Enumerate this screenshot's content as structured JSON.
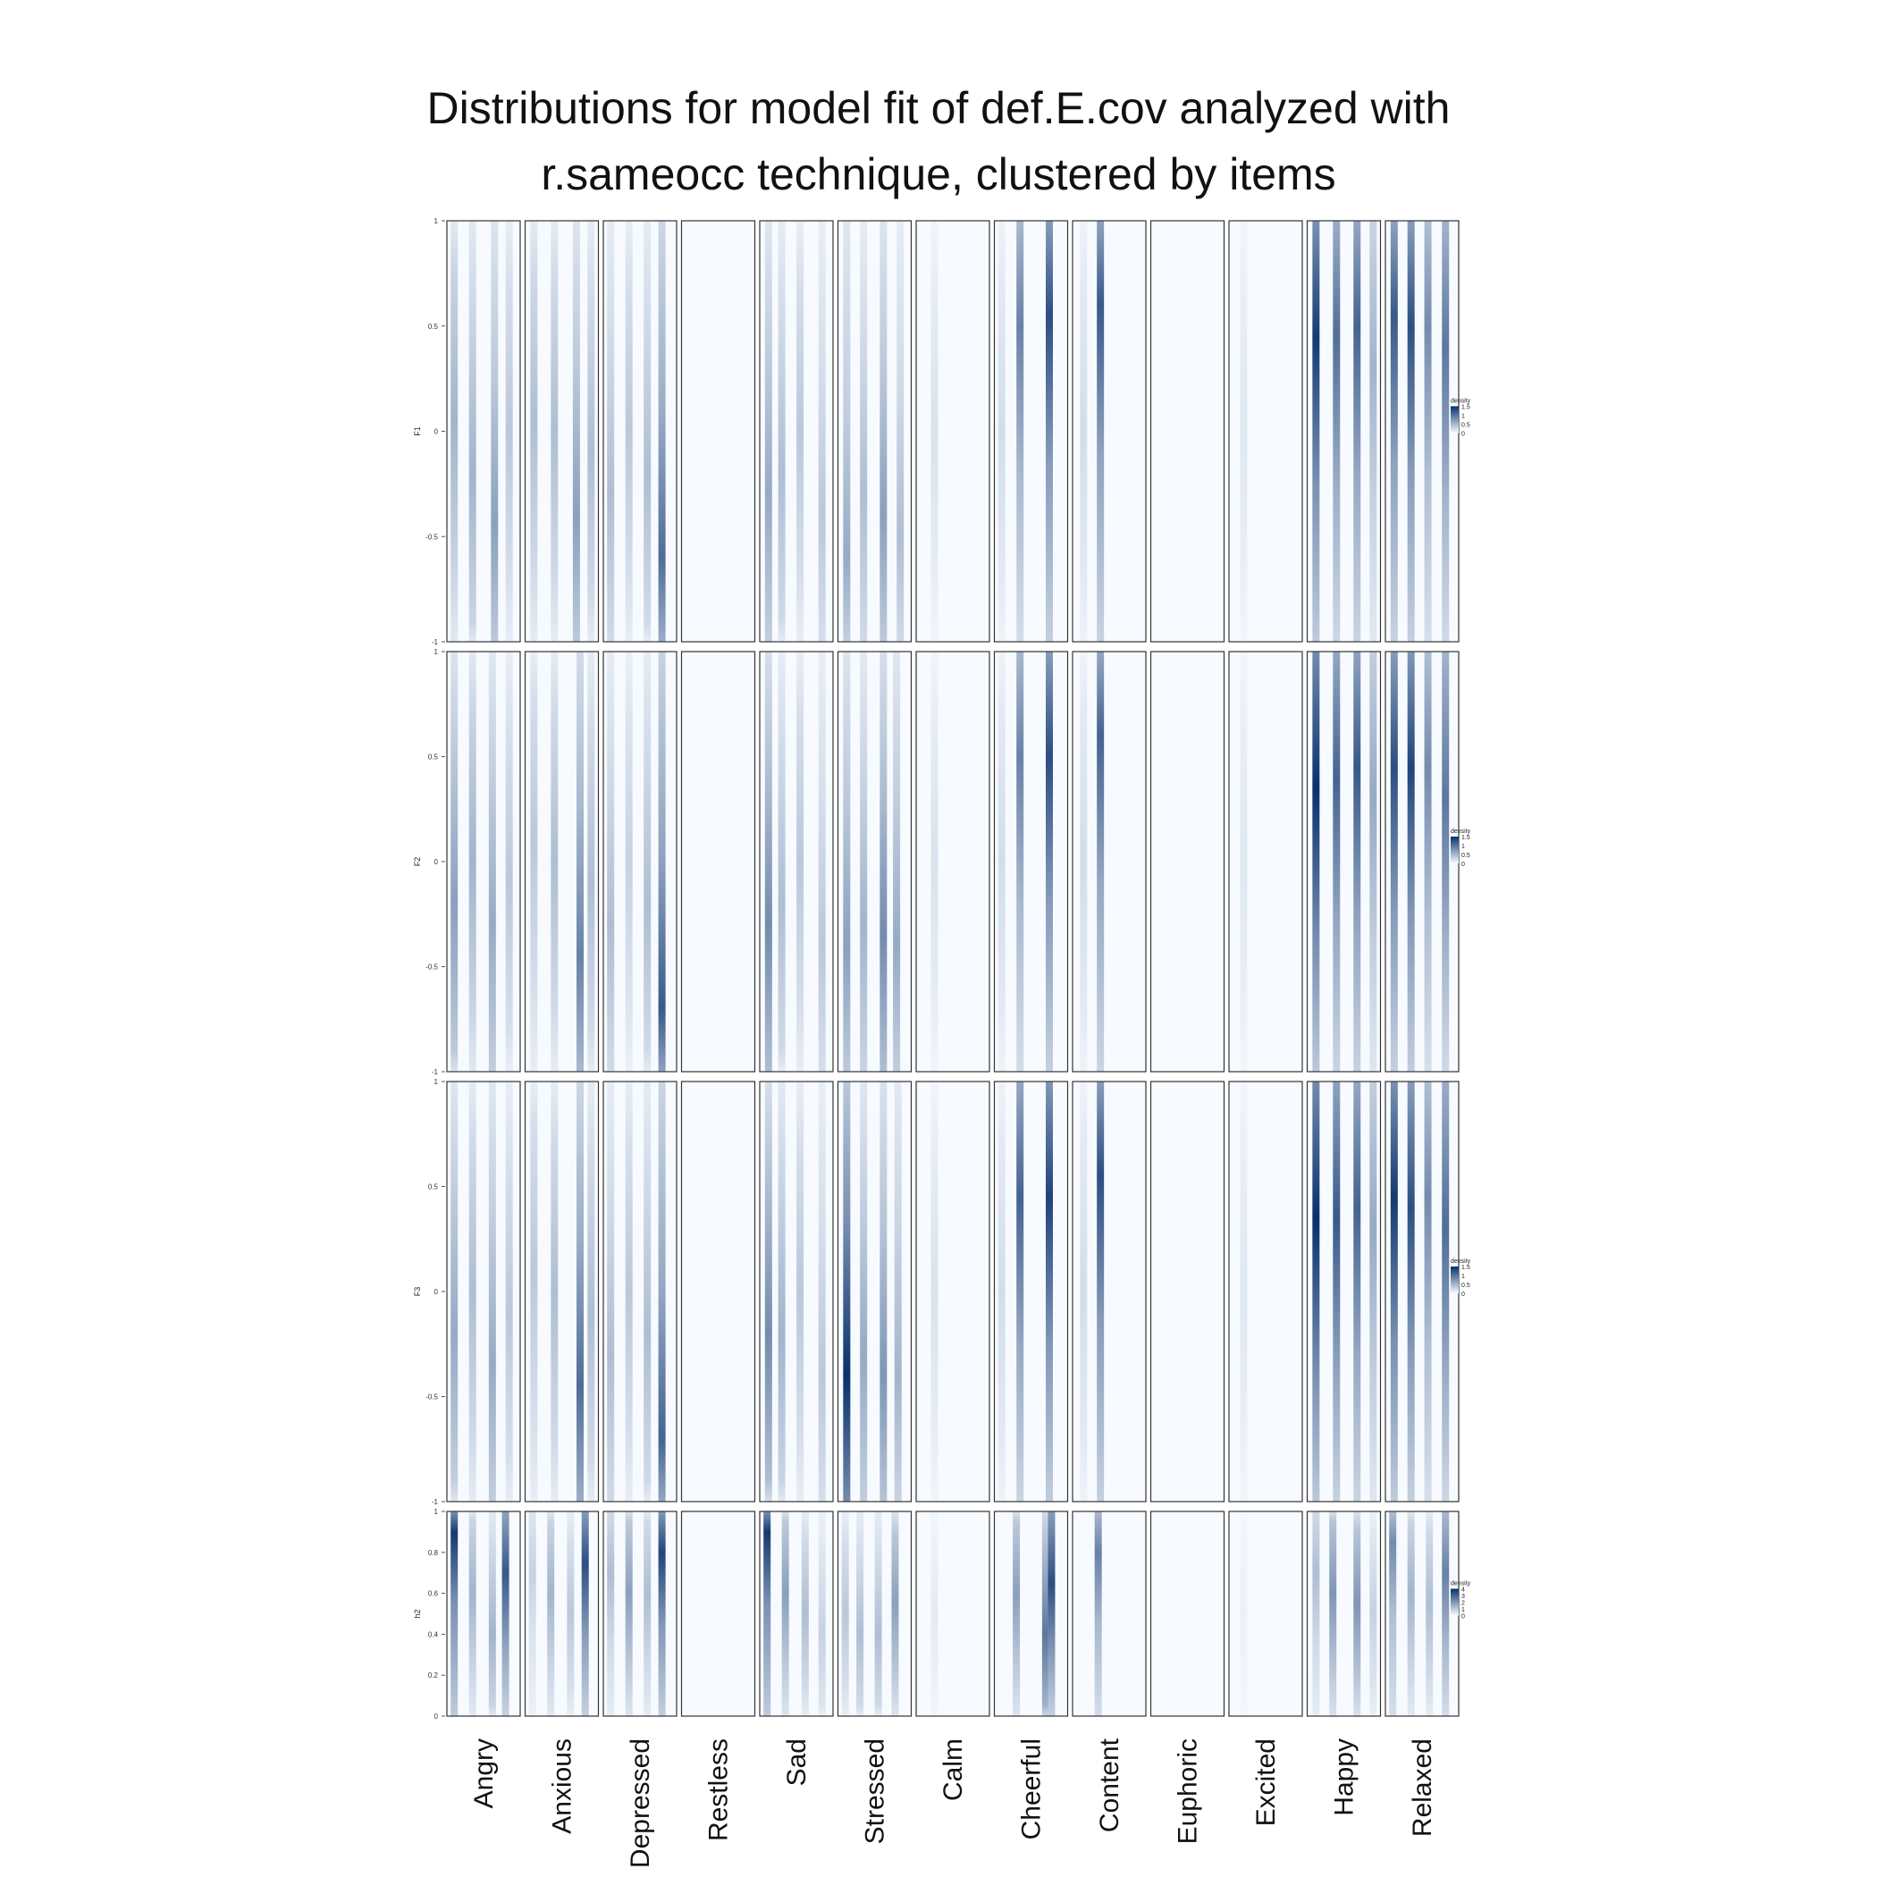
{
  "chart_data": {
    "type": "heatmap",
    "title_line1": "Distributions for model fit of def.E.cov analyzed with",
    "title_line2": "r.sameocc technique, clustered by items",
    "categories": [
      "Angry",
      "Anxious",
      "Depressed",
      "Restless",
      "Sad",
      "Stressed",
      "Calm",
      "Cheerful",
      "Content",
      "Euphoric",
      "Excited",
      "Happy",
      "Relaxed"
    ],
    "legend_title": "density",
    "color_low": "#f7fbff",
    "color_high": "#08306b",
    "rows": [
      {
        "label": "F1",
        "ylim": [
          -1,
          1
        ],
        "yticks": [
          "-1",
          "-0.5",
          "0",
          "0.5",
          "1"
        ],
        "legend_ticks": [
          "0",
          "0.5",
          "1",
          "1.5"
        ],
        "panels": [
          [
            [
              0.1,
              0.35,
              0.05
            ],
            [
              0.35,
              0.35,
              -0.2
            ],
            [
              0.65,
              0.45,
              -0.45
            ],
            [
              0.85,
              0.25,
              0.0
            ]
          ],
          [
            [
              0.12,
              0.3,
              0.05
            ],
            [
              0.4,
              0.3,
              0.0
            ],
            [
              0.7,
              0.45,
              -0.4
            ],
            [
              0.9,
              0.3,
              -0.1
            ]
          ],
          [
            [
              0.1,
              0.3,
              -0.3
            ],
            [
              0.35,
              0.25,
              0.0
            ],
            [
              0.6,
              0.3,
              -0.2
            ],
            [
              0.8,
              0.7,
              -0.6
            ]
          ],
          [],
          [
            [
              0.12,
              0.4,
              -0.3
            ],
            [
              0.3,
              0.3,
              -0.2
            ],
            [
              0.55,
              0.25,
              0.0
            ],
            [
              0.85,
              0.25,
              -0.4
            ]
          ],
          [
            [
              0.12,
              0.4,
              -0.6
            ],
            [
              0.35,
              0.3,
              -0.3
            ],
            [
              0.62,
              0.45,
              -0.4
            ],
            [
              0.85,
              0.3,
              -0.5
            ]
          ],
          [
            [
              0.25,
              0.12,
              0.0
            ]
          ],
          [
            [
              0.1,
              0.15,
              0.0
            ],
            [
              0.35,
              0.6,
              0.5
            ],
            [
              0.75,
              0.85,
              0.55
            ]
          ],
          [
            [
              0.15,
              0.15,
              0.0
            ],
            [
              0.38,
              0.8,
              0.6
            ]
          ],
          [],
          [
            [
              0.2,
              0.1,
              0.0
            ]
          ],
          [
            [
              0.12,
              0.95,
              0.45
            ],
            [
              0.4,
              0.7,
              0.45
            ],
            [
              0.68,
              0.75,
              0.5
            ],
            [
              0.9,
              0.35,
              0.3
            ]
          ],
          [
            [
              0.12,
              0.8,
              0.55
            ],
            [
              0.35,
              0.85,
              0.5
            ],
            [
              0.58,
              0.55,
              0.5
            ],
            [
              0.82,
              0.65,
              0.4
            ]
          ]
        ]
      },
      {
        "label": "F2",
        "ylim": [
          -1,
          1
        ],
        "yticks": [
          "-1",
          "-0.5",
          "0",
          "0.5",
          "1"
        ],
        "legend_ticks": [
          "0",
          "0.5",
          "1",
          "1.5"
        ],
        "panels": [
          [
            [
              0.1,
              0.45,
              -0.2
            ],
            [
              0.35,
              0.35,
              0.0
            ],
            [
              0.62,
              0.4,
              -0.3
            ],
            [
              0.85,
              0.25,
              -0.1
            ]
          ],
          [
            [
              0.12,
              0.25,
              0.1
            ],
            [
              0.4,
              0.3,
              0.0
            ],
            [
              0.75,
              0.6,
              -0.45
            ],
            [
              0.9,
              0.3,
              -0.1
            ]
          ],
          [
            [
              0.1,
              0.3,
              -0.3
            ],
            [
              0.35,
              0.2,
              0.0
            ],
            [
              0.6,
              0.3,
              -0.2
            ],
            [
              0.8,
              0.8,
              -0.7
            ]
          ],
          [],
          [
            [
              0.12,
              0.55,
              -0.3
            ],
            [
              0.3,
              0.3,
              -0.2
            ],
            [
              0.55,
              0.25,
              0.0
            ],
            [
              0.85,
              0.25,
              -0.4
            ]
          ],
          [
            [
              0.12,
              0.45,
              -0.4
            ],
            [
              0.35,
              0.35,
              -0.3
            ],
            [
              0.62,
              0.55,
              -0.35
            ],
            [
              0.8,
              0.4,
              -0.4
            ]
          ],
          [
            [
              0.25,
              0.12,
              0.0
            ]
          ],
          [
            [
              0.1,
              0.15,
              0.0
            ],
            [
              0.35,
              0.6,
              0.5
            ],
            [
              0.75,
              0.85,
              0.5
            ]
          ],
          [
            [
              0.15,
              0.15,
              0.0
            ],
            [
              0.38,
              0.75,
              0.6
            ]
          ],
          [],
          [
            [
              0.2,
              0.1,
              0.0
            ]
          ],
          [
            [
              0.12,
              1.0,
              0.35
            ],
            [
              0.4,
              0.75,
              0.4
            ],
            [
              0.68,
              0.8,
              0.45
            ],
            [
              0.9,
              0.4,
              0.3
            ]
          ],
          [
            [
              0.12,
              0.85,
              0.45
            ],
            [
              0.35,
              0.9,
              0.45
            ],
            [
              0.58,
              0.55,
              0.45
            ],
            [
              0.82,
              0.65,
              0.3
            ]
          ]
        ]
      },
      {
        "label": "F3",
        "ylim": [
          -1,
          1
        ],
        "yticks": [
          "-1",
          "-0.5",
          "0",
          "0.5",
          "1"
        ],
        "legend_ticks": [
          "0",
          "0.5",
          "1",
          "1.5"
        ],
        "panels": [
          [
            [
              0.1,
              0.4,
              -0.2
            ],
            [
              0.35,
              0.3,
              0.0
            ],
            [
              0.62,
              0.4,
              -0.35
            ],
            [
              0.85,
              0.25,
              -0.1
            ]
          ],
          [
            [
              0.12,
              0.25,
              0.1
            ],
            [
              0.4,
              0.3,
              0.0
            ],
            [
              0.75,
              0.7,
              -0.45
            ],
            [
              0.9,
              0.3,
              -0.1
            ]
          ],
          [
            [
              0.1,
              0.3,
              -0.3
            ],
            [
              0.35,
              0.25,
              0.0
            ],
            [
              0.6,
              0.3,
              -0.2
            ],
            [
              0.8,
              0.75,
              -0.7
            ]
          ],
          [],
          [
            [
              0.12,
              0.55,
              -0.2
            ],
            [
              0.3,
              0.35,
              -0.2
            ],
            [
              0.55,
              0.25,
              0.0
            ],
            [
              0.85,
              0.25,
              -0.4
            ]
          ],
          [
            [
              0.12,
              1.0,
              -0.4
            ],
            [
              0.35,
              0.4,
              -0.3
            ],
            [
              0.62,
              0.5,
              -0.4
            ],
            [
              0.82,
              0.35,
              -0.4
            ]
          ],
          [
            [
              0.25,
              0.12,
              0.0
            ]
          ],
          [
            [
              0.1,
              0.15,
              0.0
            ],
            [
              0.35,
              0.75,
              0.45
            ],
            [
              0.75,
              0.9,
              0.45
            ]
          ],
          [
            [
              0.15,
              0.15,
              0.0
            ],
            [
              0.38,
              0.85,
              0.55
            ]
          ],
          [],
          [
            [
              0.2,
              0.1,
              0.0
            ]
          ],
          [
            [
              0.12,
              1.0,
              0.35
            ],
            [
              0.4,
              0.8,
              0.35
            ],
            [
              0.68,
              0.75,
              0.4
            ],
            [
              0.9,
              0.4,
              0.3
            ]
          ],
          [
            [
              0.12,
              0.95,
              0.45
            ],
            [
              0.35,
              0.85,
              0.4
            ],
            [
              0.58,
              0.55,
              0.45
            ],
            [
              0.82,
              0.7,
              0.3
            ]
          ]
        ]
      },
      {
        "label": "h2",
        "ylim": [
          0,
          1
        ],
        "yticks": [
          "0",
          "0.2",
          "0.4",
          "0.6",
          "0.8",
          "1"
        ],
        "legend_ticks": [
          "0",
          "1",
          "2",
          "3",
          "4"
        ],
        "panels": [
          [
            [
              0.1,
              0.95,
              0.9
            ],
            [
              0.35,
              0.35,
              0.6
            ],
            [
              0.62,
              0.35,
              0.4
            ],
            [
              0.8,
              0.8,
              0.7
            ]
          ],
          [
            [
              0.1,
              0.2,
              0.7
            ],
            [
              0.35,
              0.35,
              0.6
            ],
            [
              0.62,
              0.25,
              0.5
            ],
            [
              0.82,
              0.85,
              0.75
            ]
          ],
          [
            [
              0.1,
              0.3,
              0.7
            ],
            [
              0.35,
              0.45,
              0.6
            ],
            [
              0.6,
              0.3,
              0.6
            ],
            [
              0.8,
              0.9,
              0.8
            ]
          ],
          [],
          [
            [
              0.1,
              0.95,
              0.9
            ],
            [
              0.35,
              0.45,
              0.6
            ],
            [
              0.62,
              0.3,
              0.5
            ],
            [
              0.85,
              0.2,
              0.4
            ]
          ],
          [
            [
              0.1,
              0.25,
              0.5
            ],
            [
              0.3,
              0.3,
              0.4
            ],
            [
              0.55,
              0.3,
              0.4
            ],
            [
              0.78,
              0.45,
              0.55
            ]
          ],
          [
            [
              0.25,
              0.08,
              0.5
            ]
          ],
          [
            [
              0.3,
              0.45,
              0.6
            ],
            [
              0.7,
              0.65,
              0.4
            ],
            [
              0.78,
              0.85,
              0.65
            ]
          ],
          [
            [
              0.35,
              0.6,
              0.8
            ]
          ],
          [],
          [
            [
              0.2,
              0.05,
              0.5
            ]
          ],
          [
            [
              0.12,
              0.3,
              0.7
            ],
            [
              0.35,
              0.5,
              0.6
            ],
            [
              0.68,
              0.5,
              0.55
            ],
            [
              0.9,
              0.2,
              0.5
            ]
          ],
          [
            [
              0.1,
              0.55,
              0.85
            ],
            [
              0.35,
              0.35,
              0.6
            ],
            [
              0.6,
              0.3,
              0.55
            ],
            [
              0.82,
              0.6,
              0.7
            ]
          ]
        ]
      }
    ]
  }
}
